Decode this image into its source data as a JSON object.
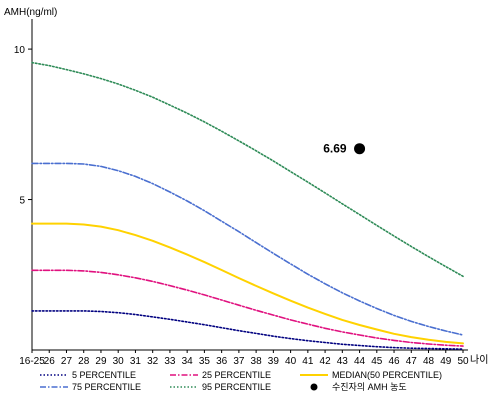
{
  "chart_data": {
    "type": "line",
    "ylabel": "AMH(ng/ml)",
    "xlabel": "나이",
    "ylim": [
      0,
      11
    ],
    "yticks": [
      5,
      10
    ],
    "grid": false,
    "legend_position": "bottom",
    "categories": [
      "16-25",
      "26",
      "27",
      "28",
      "29",
      "30",
      "31",
      "32",
      "33",
      "34",
      "35",
      "36",
      "37",
      "38",
      "39",
      "40",
      "41",
      "42",
      "43",
      "44",
      "45",
      "46",
      "47",
      "48",
      "49",
      "50"
    ],
    "series": [
      {
        "name": "5 PERCENTILE",
        "color": "#000080",
        "style": "dotted",
        "values": [
          1.3,
          1.3,
          1.3,
          1.3,
          1.28,
          1.24,
          1.18,
          1.1,
          1.02,
          0.93,
          0.84,
          0.74,
          0.64,
          0.55,
          0.46,
          0.38,
          0.31,
          0.25,
          0.19,
          0.15,
          0.11,
          0.08,
          0.06,
          0.05,
          0.04,
          0.03
        ]
      },
      {
        "name": "25 PERCENTILE",
        "color": "#e0117f",
        "style": "dashdot",
        "values": [
          2.65,
          2.65,
          2.65,
          2.63,
          2.58,
          2.5,
          2.4,
          2.28,
          2.14,
          1.99,
          1.83,
          1.66,
          1.49,
          1.32,
          1.16,
          1.0,
          0.86,
          0.72,
          0.6,
          0.5,
          0.4,
          0.32,
          0.25,
          0.2,
          0.16,
          0.13
        ]
      },
      {
        "name": "MEDIAN(50 PERCENTILE)",
        "color": "#ffd200",
        "style": "solid",
        "values": [
          4.2,
          4.2,
          4.2,
          4.17,
          4.1,
          3.98,
          3.82,
          3.63,
          3.41,
          3.17,
          2.92,
          2.66,
          2.39,
          2.13,
          1.88,
          1.64,
          1.41,
          1.2,
          1.0,
          0.83,
          0.68,
          0.54,
          0.43,
          0.34,
          0.27,
          0.22
        ]
      },
      {
        "name": "75 PERCENTILE",
        "color": "#4a6fd0",
        "style": "dashdot",
        "values": [
          6.2,
          6.2,
          6.2,
          6.18,
          6.1,
          5.96,
          5.77,
          5.53,
          5.25,
          4.95,
          4.63,
          4.28,
          3.93,
          3.57,
          3.21,
          2.86,
          2.52,
          2.2,
          1.9,
          1.63,
          1.38,
          1.15,
          0.95,
          0.78,
          0.63,
          0.5
        ]
      },
      {
        "name": "95 PERCENTILE",
        "color": "#2e8b57",
        "style": "dotted",
        "values": [
          9.55,
          9.45,
          9.32,
          9.18,
          9.02,
          8.84,
          8.63,
          8.4,
          8.14,
          7.87,
          7.58,
          7.27,
          6.95,
          6.62,
          6.28,
          5.93,
          5.58,
          5.22,
          4.86,
          4.5,
          4.14,
          3.79,
          3.44,
          3.1,
          2.77,
          2.45
        ]
      }
    ],
    "marker": {
      "name": "수진자의 AMH 농도",
      "x": "44",
      "y": 6.69,
      "label": "6.69",
      "color": "#000000"
    }
  }
}
